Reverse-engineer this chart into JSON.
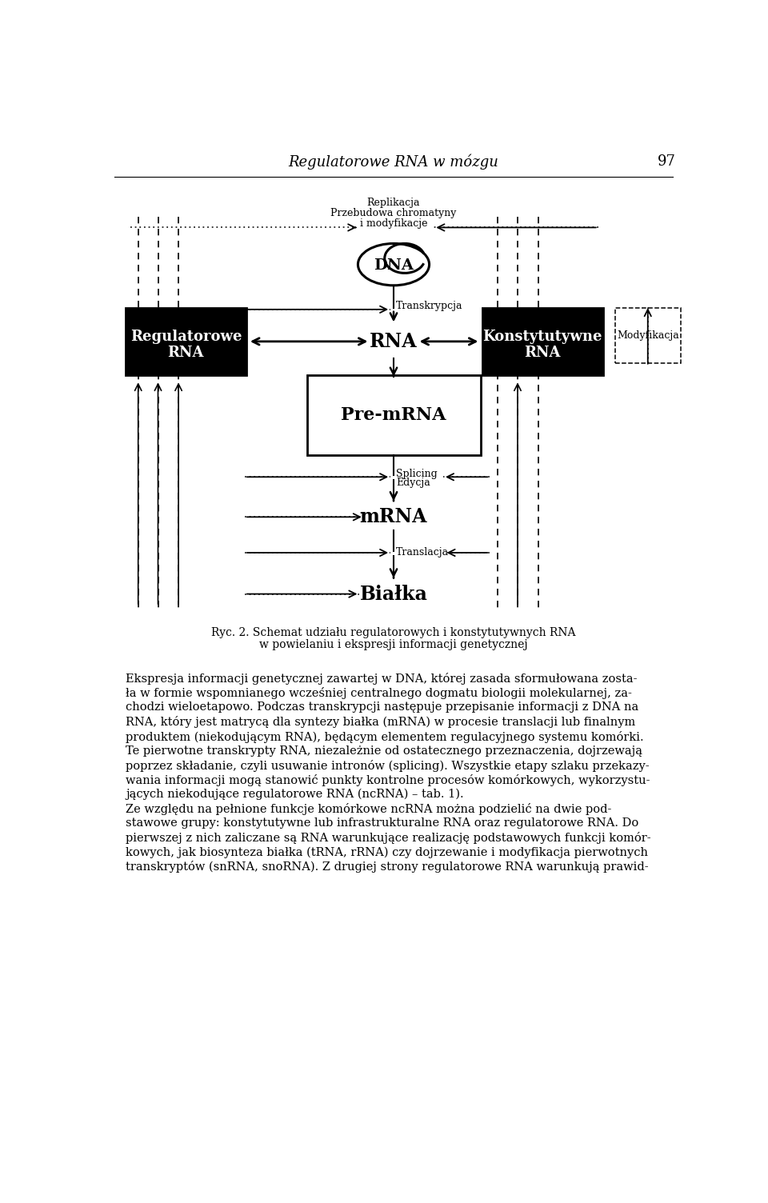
{
  "title_italic": "Regulatorowe RNA w mózgu",
  "page_number": "97",
  "fig_caption_line1": "Ryc. 2. Schemat udziału regulatorowych i konstytutywnych RNA",
  "fig_caption_line2": "w powielaniu i ekspresji informacji genetycznej",
  "body_text": [
    "Ekspresja informacji genetycznej zawartej w DNA, której zasada sformułowana zosta-",
    "ła w formie wspomnianego wcześniej centralnego dogmatu biologii molekularnej, za-",
    "chodzi wieloetapowo. Podczas transkrypcji następuje przepisanie informacji z DNA na",
    "RNA, który jest matrycą dla syntezy białka (mRNA) w procesie translacji lub finalnym",
    "produktem (niekodującym RNA), będącym elementem regulacyjnego systemu komórki.",
    "Te pierwotne transkrypty RNA, niezależnie od ostatecznego przeznaczenia, dojrzewają",
    "poprzez składanie, czyli usuwanie intronów (splicing). Wszystkie etapy szlaku przekazy-",
    "wania informacji mogą stanowić punkty kontrolne procesów komórkowych, wykorzystu-",
    "jących niekodujące regulatorowe RNA (ncRNA) – tab. 1).",
    "Ze względu na pełnione funkcje komórkowe ncRNA można podzielić na dwie pod-",
    "stawowe grupy: konstytutywne lub infrastrukturalne RNA oraz regulatorowe RNA. Do",
    "pierwszej z nich zaliczane są RNA warunkujące realizację podstawowych funkcji komór-",
    "kowych, jak biosynteza białka (tRNA, rRNA) czy dojrzewanie i modyfikacja pierwotnych",
    "transkryptów (snRNA, snoRNA). Z drugiej strony regulatorowe RNA warunkują prawid-"
  ],
  "background_color": "#ffffff",
  "text_color": "#000000"
}
